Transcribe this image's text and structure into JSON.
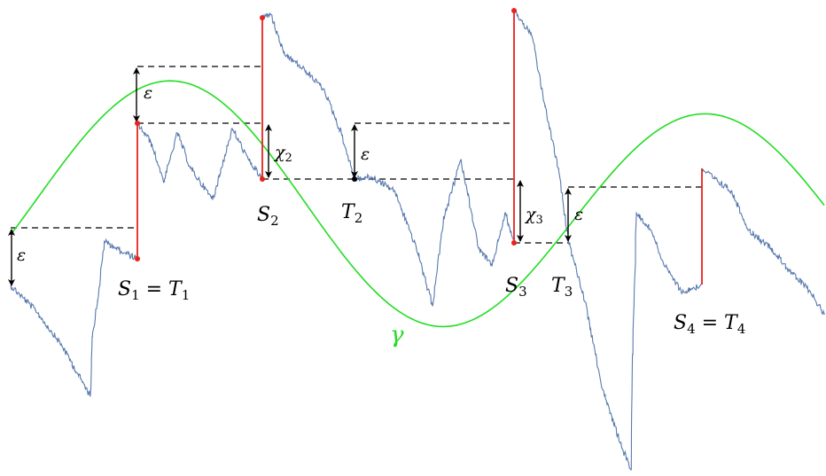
{
  "colors": {
    "path": "#5779ae",
    "curve": "#22dd22",
    "jump": "#e8221e",
    "dot": "#e8221e",
    "dot_dark": "#000000",
    "dashed": "#000000",
    "arrow": "#000000"
  },
  "labels": {
    "s1": "S",
    "s1_sub": "1",
    "s1_eq": " = ",
    "t1": "T",
    "t1_sub": "1",
    "s2": "S",
    "s2_sub": "2",
    "t2": "T",
    "t2_sub": "2",
    "s3": "S",
    "s3_sub": "3",
    "t3": "T",
    "t3_sub": "3",
    "s4": "S",
    "s4_sub": "4",
    "s4_eq": " = ",
    "t4": "T",
    "t4_sub": "4",
    "eps": "ε",
    "chi": "χ",
    "chi2_sub": "2",
    "chi3_sub": "3",
    "gamma": "γ"
  }
}
